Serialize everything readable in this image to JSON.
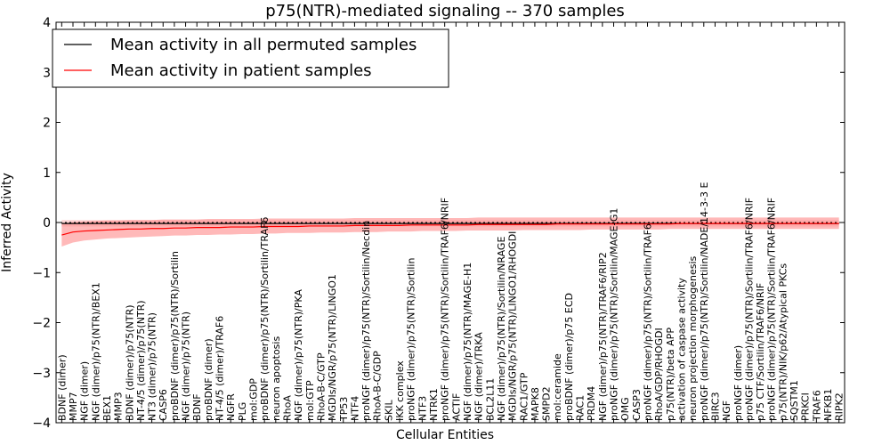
{
  "chart_data": {
    "type": "line",
    "title": "p75(NTR)-mediated signaling -- 370 samples",
    "xlabel": "Cellular Entities",
    "ylabel": "Inferred Activity",
    "ylim": [
      -4,
      4
    ],
    "yticks": [
      -4,
      -3,
      -2,
      -1,
      0,
      1,
      2,
      3,
      4
    ],
    "grid": false,
    "legend_position": "top-left",
    "reference_line": 0,
    "colors": {
      "permuted": "#000000",
      "patient": "#ff0000",
      "band": "#ff8a8a"
    },
    "categories": [
      "BDNF (dimer)",
      "MMP7",
      "NGF (dimer)",
      "NGF (dimer)/p75(NTR)/BEX1",
      "BEX1",
      "MMP3",
      "BDNF (dimer)/p75(NTR)",
      "NT-4/5 (dimer)/p75(NTR)",
      "NT3 (dimer)/p75(NTR)",
      "CASP6",
      "proBDNF (dimer)/p75(NTR)/Sortilin",
      "NGF (dimer)/p75(NTR)",
      "BDNF",
      "proBDNF (dimer)",
      "NT-4/5 (dimer)/TRAF6",
      "NGFR",
      "PLG",
      "mol:GDP",
      "proBDNF (dimer)/p75(NTR)/Sortilin/TRAF6",
      "neuron apoptosis",
      "RhoA",
      "NGF (dimer)/p75(NTR)/PKA",
      "mol:GTP",
      "RhoA-B-C/GTP",
      "MGDIs/NGR/p75(NTR)/LINGO1",
      "TP53",
      "NTF4",
      "proNGF (dimer)/p75(NTR)/Sortilin/Necdin",
      "RhoA-B-C/GDP",
      "SKIL",
      "IKK complex",
      "proNGF (dimer)/p75(NTR)/Sortilin",
      "NTF3",
      "NTRK1",
      "proNGF (dimer)/p75(NTR)/Sortilin/TRAF6/NRIF",
      "ACTIF",
      "NGF (dimer)/p75(NTR)/MAGE-H1",
      "NGF (dimer)/TRKA",
      "BCL2L11",
      "NGF (dimer)/p75(NTR)/Sortilin/NRAGE",
      "MGDIs/NGR/p75(NTR)/LINGO1/RHOGDI",
      "RAC1/GTP",
      "MAPK8",
      "SMPD2",
      "mol:ceramide",
      "proBDNF (dimer)/p75 ECD",
      "RAC1",
      "PRDM4",
      "NGF (dimer)/p75(NTR)/TRAF6/RIP2",
      "proNGF (dimer)/p75(NTR)/Sortilin/MAGE-G1",
      "OMG",
      "CASP3",
      "proNGF (dimer)/p75(NTR)/Sortilin/TRAF6",
      "RhoA/GDP/RHOGDI",
      "p75(NTR)/beta APP",
      "activation of caspase activity",
      "neuron projection morphogenesis",
      "proNGF (dimer)/p75(NTR)/Sortilin/NADE/14-3-3 E",
      "BIRC3",
      "NGF",
      "proNGF (dimer)",
      "proNGF (dimer)/p75(NTR)/Sortilin/TRAF6/NRIF",
      "p75 CTF/Sortilin/TRAF6/NRIF",
      "proNGF (dimer)/p75(NTR)/Sortilin/TRAF6/NRIF",
      "p75(NTR)/NIK/p62/Atypical PKCs",
      "SQSTM1",
      "PRKCI",
      "TRAF6",
      "NFKB1",
      "RIPK2"
    ],
    "series": [
      {
        "name": "Mean activity in all permuted samples",
        "values": [
          -0.02,
          -0.02,
          -0.02,
          -0.02,
          -0.02,
          -0.02,
          -0.02,
          -0.02,
          -0.02,
          -0.02,
          -0.02,
          -0.02,
          -0.02,
          -0.02,
          -0.02,
          -0.02,
          -0.02,
          -0.02,
          -0.02,
          -0.02,
          -0.02,
          -0.02,
          -0.02,
          -0.02,
          -0.02,
          -0.02,
          -0.02,
          -0.02,
          -0.02,
          -0.02,
          -0.02,
          -0.02,
          -0.02,
          -0.02,
          -0.02,
          -0.02,
          -0.02,
          -0.02,
          -0.02,
          -0.02,
          -0.02,
          -0.02,
          -0.02,
          -0.02,
          -0.02,
          -0.02,
          -0.02,
          -0.02,
          -0.02,
          -0.02,
          -0.02,
          -0.02,
          -0.02,
          -0.02,
          -0.02,
          -0.02,
          -0.02,
          -0.02,
          -0.02,
          -0.02,
          -0.02,
          -0.02,
          -0.02,
          -0.02,
          -0.02,
          -0.02,
          -0.02,
          -0.02,
          -0.02,
          -0.02
        ],
        "lower": [
          -0.08,
          -0.08,
          -0.08,
          -0.08,
          -0.08,
          -0.08,
          -0.08,
          -0.08,
          -0.08,
          -0.08,
          -0.08,
          -0.08,
          -0.08,
          -0.08,
          -0.08,
          -0.08,
          -0.08,
          -0.08,
          -0.08,
          -0.08,
          -0.08,
          -0.08,
          -0.08,
          -0.08,
          -0.08,
          -0.08,
          -0.08,
          -0.08,
          -0.08,
          -0.08,
          -0.08,
          -0.08,
          -0.08,
          -0.08,
          -0.08,
          -0.08,
          -0.08,
          -0.08,
          -0.08,
          -0.08,
          -0.08,
          -0.08,
          -0.08,
          -0.08,
          -0.08,
          -0.08,
          -0.08,
          -0.08,
          -0.08,
          -0.08,
          -0.08,
          -0.08,
          -0.08,
          -0.08,
          -0.08,
          -0.08,
          -0.08,
          -0.08,
          -0.08,
          -0.08,
          -0.08,
          -0.08,
          -0.08,
          -0.08,
          -0.08,
          -0.08,
          -0.08,
          -0.08,
          -0.08,
          -0.08
        ],
        "upper": [
          0.05,
          0.05,
          0.05,
          0.05,
          0.05,
          0.05,
          0.05,
          0.05,
          0.05,
          0.05,
          0.05,
          0.05,
          0.05,
          0.05,
          0.05,
          0.05,
          0.05,
          0.05,
          0.05,
          0.05,
          0.05,
          0.05,
          0.05,
          0.05,
          0.05,
          0.05,
          0.05,
          0.05,
          0.05,
          0.05,
          0.05,
          0.05,
          0.05,
          0.05,
          0.05,
          0.05,
          0.05,
          0.05,
          0.05,
          0.05,
          0.05,
          0.05,
          0.05,
          0.05,
          0.05,
          0.05,
          0.05,
          0.05,
          0.05,
          0.05,
          0.05,
          0.05,
          0.05,
          0.05,
          0.05,
          0.05,
          0.05,
          0.05,
          0.05,
          0.05,
          0.05,
          0.05,
          0.05,
          0.05,
          0.05,
          0.05,
          0.05,
          0.05,
          0.05,
          0.05
        ]
      },
      {
        "name": "Mean activity in patient samples",
        "values": [
          -0.25,
          -0.19,
          -0.17,
          -0.16,
          -0.15,
          -0.14,
          -0.13,
          -0.13,
          -0.12,
          -0.12,
          -0.11,
          -0.11,
          -0.1,
          -0.1,
          -0.1,
          -0.09,
          -0.09,
          -0.09,
          -0.08,
          -0.08,
          -0.08,
          -0.08,
          -0.07,
          -0.07,
          -0.07,
          -0.07,
          -0.06,
          -0.06,
          -0.06,
          -0.06,
          -0.06,
          -0.05,
          -0.05,
          -0.05,
          -0.05,
          -0.05,
          -0.05,
          -0.04,
          -0.04,
          -0.04,
          -0.04,
          -0.04,
          -0.04,
          -0.04,
          -0.03,
          -0.03,
          -0.03,
          -0.03,
          -0.03,
          -0.03,
          -0.03,
          -0.03,
          -0.03,
          -0.03,
          -0.03,
          -0.02,
          -0.02,
          -0.02,
          -0.02,
          -0.02,
          -0.02,
          -0.02,
          -0.02,
          -0.02,
          -0.02,
          -0.02,
          -0.02,
          -0.02,
          -0.02,
          -0.02
        ],
        "lower": [
          -0.48,
          -0.4,
          -0.36,
          -0.34,
          -0.32,
          -0.31,
          -0.3,
          -0.29,
          -0.28,
          -0.27,
          -0.26,
          -0.26,
          -0.25,
          -0.25,
          -0.24,
          -0.24,
          -0.23,
          -0.23,
          -0.22,
          -0.22,
          -0.21,
          -0.21,
          -0.21,
          -0.2,
          -0.2,
          -0.2,
          -0.19,
          -0.19,
          -0.19,
          -0.18,
          -0.18,
          -0.18,
          -0.17,
          -0.17,
          -0.17,
          -0.17,
          -0.16,
          -0.16,
          -0.16,
          -0.16,
          -0.16,
          -0.15,
          -0.15,
          -0.15,
          -0.15,
          -0.15,
          -0.15,
          -0.14,
          -0.14,
          -0.14,
          -0.14,
          -0.14,
          -0.14,
          -0.14,
          -0.13,
          -0.13,
          -0.13,
          -0.13,
          -0.13,
          -0.13,
          -0.13,
          -0.13,
          -0.13,
          -0.13,
          -0.13,
          -0.13,
          -0.13,
          -0.13,
          -0.13,
          -0.13
        ],
        "upper": [
          -0.02,
          0.01,
          0.02,
          0.03,
          0.04,
          0.04,
          0.05,
          0.05,
          0.05,
          0.06,
          0.06,
          0.06,
          0.06,
          0.07,
          0.07,
          0.07,
          0.07,
          0.07,
          0.08,
          0.08,
          0.08,
          0.08,
          0.08,
          0.08,
          0.08,
          0.08,
          0.09,
          0.09,
          0.09,
          0.09,
          0.09,
          0.09,
          0.09,
          0.09,
          0.09,
          0.09,
          0.09,
          0.1,
          0.1,
          0.1,
          0.1,
          0.1,
          0.1,
          0.1,
          0.1,
          0.1,
          0.1,
          0.1,
          0.1,
          0.1,
          0.1,
          0.1,
          0.1,
          0.1,
          0.1,
          0.1,
          0.1,
          0.1,
          0.1,
          0.1,
          0.1,
          0.1,
          0.1,
          0.1,
          0.1,
          0.1,
          0.1,
          0.1,
          0.1,
          0.1
        ]
      }
    ]
  }
}
